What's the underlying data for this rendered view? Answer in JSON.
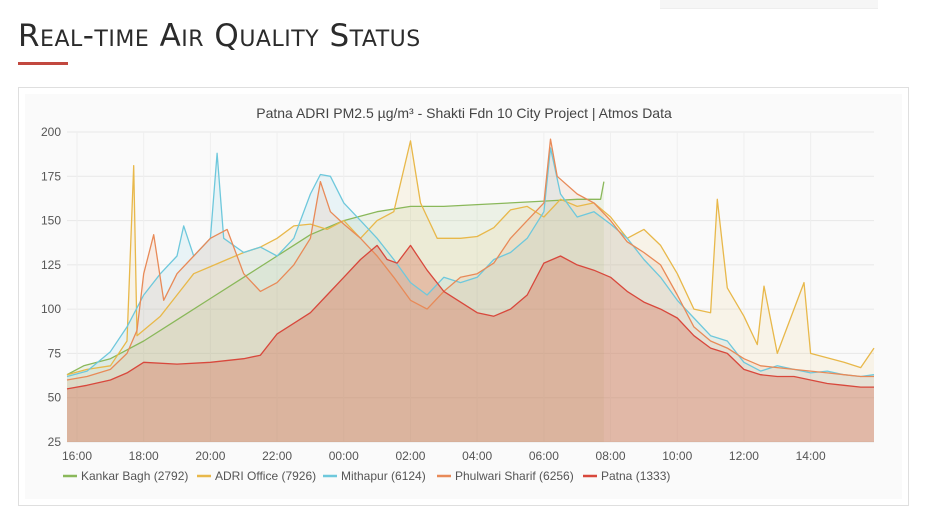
{
  "page": {
    "heading": "Real-time Air Quality Status"
  },
  "chart_data": {
    "type": "area",
    "title": "Patna ADRI PM2.5 µg/m³ - Shakti Fdn 10 City Project | Atmos Data",
    "xlabel": "",
    "ylabel": "",
    "ylim": [
      25,
      200
    ],
    "y_ticks": [
      25,
      50,
      75,
      100,
      125,
      150,
      175,
      200
    ],
    "xlim": [
      -0.3,
      23.9
    ],
    "x_ticks": [
      {
        "t": 0,
        "label": "16:00"
      },
      {
        "t": 2,
        "label": "18:00"
      },
      {
        "t": 4,
        "label": "20:00"
      },
      {
        "t": 6,
        "label": "22:00"
      },
      {
        "t": 8,
        "label": "00:00"
      },
      {
        "t": 10,
        "label": "02:00"
      },
      {
        "t": 12,
        "label": "04:00"
      },
      {
        "t": 14,
        "label": "06:00"
      },
      {
        "t": 16,
        "label": "08:00"
      },
      {
        "t": 18,
        "label": "10:00"
      },
      {
        "t": 20,
        "label": "12:00"
      },
      {
        "t": 22,
        "label": "14:00"
      }
    ],
    "grid": true,
    "legend_position": "bottom",
    "series": [
      {
        "name": "Kankar Bagh (2792)",
        "color": "#8ab85a",
        "fill": "rgba(138,184,90,0.12)",
        "points": [
          [
            -0.3,
            63
          ],
          [
            0.2,
            68
          ],
          [
            1,
            72
          ],
          [
            2,
            82
          ],
          [
            3,
            94
          ],
          [
            4,
            106
          ],
          [
            5,
            118
          ],
          [
            6,
            130
          ],
          [
            7,
            142
          ],
          [
            8,
            150
          ],
          [
            9,
            155
          ],
          [
            10,
            158
          ],
          [
            11,
            158
          ],
          [
            12,
            159
          ],
          [
            13,
            160
          ],
          [
            14,
            161
          ],
          [
            15,
            162
          ],
          [
            15.7,
            162
          ],
          [
            15.8,
            172
          ]
        ]
      },
      {
        "name": "ADRI Office (7926)",
        "color": "#e8b84a",
        "fill": "rgba(232,184,74,0.10)",
        "points": [
          [
            -0.3,
            63
          ],
          [
            0.3,
            66
          ],
          [
            1,
            68
          ],
          [
            1.5,
            82
          ],
          [
            1.7,
            181
          ],
          [
            1.8,
            85
          ],
          [
            2.5,
            96
          ],
          [
            3,
            108
          ],
          [
            3.5,
            120
          ],
          [
            4,
            124
          ],
          [
            4.5,
            128
          ],
          [
            5,
            132
          ],
          [
            5.5,
            135
          ],
          [
            6,
            140
          ],
          [
            6.5,
            147
          ],
          [
            7,
            148
          ],
          [
            7.5,
            145
          ],
          [
            8,
            150
          ],
          [
            8.5,
            140
          ],
          [
            9,
            150
          ],
          [
            9.5,
            155
          ],
          [
            10,
            195
          ],
          [
            10.3,
            160
          ],
          [
            10.8,
            140
          ],
          [
            11.5,
            140
          ],
          [
            12,
            141
          ],
          [
            12.5,
            146
          ],
          [
            13,
            156
          ],
          [
            13.5,
            158
          ],
          [
            14,
            152
          ],
          [
            14.5,
            162
          ],
          [
            15,
            158
          ],
          [
            15.5,
            160
          ],
          [
            16,
            152
          ],
          [
            16.5,
            140
          ],
          [
            17,
            145
          ],
          [
            17.5,
            136
          ],
          [
            18,
            120
          ],
          [
            18.5,
            100
          ],
          [
            19,
            98
          ],
          [
            19.2,
            162
          ],
          [
            19.5,
            112
          ],
          [
            20,
            96
          ],
          [
            20.4,
            80
          ],
          [
            20.6,
            113
          ],
          [
            21,
            75
          ],
          [
            21.8,
            115
          ],
          [
            22,
            75
          ],
          [
            23,
            70
          ],
          [
            23.5,
            67
          ],
          [
            23.9,
            78
          ]
        ]
      },
      {
        "name": "Mithapur (6124)",
        "color": "#6ec8dc",
        "fill": "rgba(110,200,220,0.12)",
        "points": [
          [
            -0.3,
            62
          ],
          [
            0.3,
            65
          ],
          [
            1,
            76
          ],
          [
            1.5,
            90
          ],
          [
            2,
            108
          ],
          [
            2.5,
            120
          ],
          [
            3,
            130
          ],
          [
            3.2,
            147
          ],
          [
            3.5,
            130
          ],
          [
            4,
            140
          ],
          [
            4.2,
            188
          ],
          [
            4.4,
            140
          ],
          [
            5,
            132
          ],
          [
            5.5,
            135
          ],
          [
            6,
            130
          ],
          [
            6.5,
            140
          ],
          [
            7,
            165
          ],
          [
            7.3,
            176
          ],
          [
            7.6,
            175
          ],
          [
            8,
            160
          ],
          [
            8.5,
            150
          ],
          [
            9,
            140
          ],
          [
            9.5,
            128
          ],
          [
            10,
            115
          ],
          [
            10.5,
            108
          ],
          [
            11,
            118
          ],
          [
            11.5,
            115
          ],
          [
            12,
            118
          ],
          [
            12.5,
            128
          ],
          [
            13,
            132
          ],
          [
            13.5,
            140
          ],
          [
            14,
            155
          ],
          [
            14.2,
            191
          ],
          [
            14.5,
            165
          ],
          [
            15,
            152
          ],
          [
            15.5,
            155
          ],
          [
            16,
            148
          ],
          [
            16.5,
            140
          ],
          [
            17,
            128
          ],
          [
            17.5,
            118
          ],
          [
            18,
            105
          ],
          [
            18.5,
            95
          ],
          [
            19,
            85
          ],
          [
            19.5,
            82
          ],
          [
            20,
            70
          ],
          [
            20.5,
            65
          ],
          [
            21,
            68
          ],
          [
            21.5,
            66
          ],
          [
            22,
            64
          ],
          [
            22.5,
            65
          ],
          [
            23,
            63
          ],
          [
            23.5,
            62
          ],
          [
            23.9,
            63
          ]
        ]
      },
      {
        "name": "Phulwari Sharif (6256)",
        "color": "#e88a58",
        "fill": "rgba(232,138,88,0.12)",
        "points": [
          [
            -0.3,
            60
          ],
          [
            0.3,
            62
          ],
          [
            1,
            66
          ],
          [
            1.5,
            75
          ],
          [
            1.8,
            88
          ],
          [
            2,
            120
          ],
          [
            2.3,
            142
          ],
          [
            2.6,
            105
          ],
          [
            3,
            120
          ],
          [
            3.5,
            130
          ],
          [
            4,
            140
          ],
          [
            4.5,
            145
          ],
          [
            5,
            120
          ],
          [
            5.5,
            110
          ],
          [
            6,
            115
          ],
          [
            6.5,
            125
          ],
          [
            7,
            140
          ],
          [
            7.3,
            172
          ],
          [
            7.6,
            155
          ],
          [
            8,
            148
          ],
          [
            8.5,
            140
          ],
          [
            9,
            130
          ],
          [
            9.5,
            118
          ],
          [
            10,
            105
          ],
          [
            10.5,
            100
          ],
          [
            11,
            110
          ],
          [
            11.5,
            118
          ],
          [
            12,
            120
          ],
          [
            12.5,
            126
          ],
          [
            13,
            140
          ],
          [
            13.5,
            150
          ],
          [
            14,
            160
          ],
          [
            14.2,
            196
          ],
          [
            14.4,
            175
          ],
          [
            15,
            165
          ],
          [
            15.5,
            160
          ],
          [
            16,
            150
          ],
          [
            16.5,
            138
          ],
          [
            17,
            132
          ],
          [
            17.5,
            125
          ],
          [
            18,
            108
          ],
          [
            18.5,
            90
          ],
          [
            19,
            82
          ],
          [
            19.5,
            78
          ],
          [
            20,
            72
          ],
          [
            20.5,
            68
          ],
          [
            21,
            67
          ],
          [
            21.5,
            66
          ],
          [
            22,
            65
          ],
          [
            22.5,
            64
          ],
          [
            23,
            63
          ],
          [
            23.5,
            62
          ],
          [
            23.9,
            62
          ]
        ]
      },
      {
        "name": "Patna (1333)",
        "color": "#d8483c",
        "fill": "rgba(216,100,70,0.32)",
        "points": [
          [
            -0.3,
            55
          ],
          [
            0.3,
            57
          ],
          [
            1,
            60
          ],
          [
            1.5,
            64
          ],
          [
            2,
            70
          ],
          [
            3,
            69
          ],
          [
            4,
            70
          ],
          [
            5,
            72
          ],
          [
            5.5,
            74
          ],
          [
            6,
            86
          ],
          [
            6.5,
            92
          ],
          [
            7,
            98
          ],
          [
            7.5,
            108
          ],
          [
            8,
            118
          ],
          [
            8.5,
            128
          ],
          [
            9,
            136
          ],
          [
            9.3,
            128
          ],
          [
            9.6,
            126
          ],
          [
            10,
            136
          ],
          [
            10.5,
            122
          ],
          [
            11,
            110
          ],
          [
            11.5,
            104
          ],
          [
            12,
            98
          ],
          [
            12.5,
            96
          ],
          [
            13,
            100
          ],
          [
            13.5,
            108
          ],
          [
            14,
            126
          ],
          [
            14.5,
            130
          ],
          [
            15,
            125
          ],
          [
            15.5,
            122
          ],
          [
            16,
            118
          ],
          [
            16.5,
            110
          ],
          [
            17,
            104
          ],
          [
            17.5,
            100
          ],
          [
            18,
            95
          ],
          [
            18.5,
            85
          ],
          [
            19,
            78
          ],
          [
            19.5,
            75
          ],
          [
            20,
            66
          ],
          [
            20.5,
            63
          ],
          [
            21,
            62
          ],
          [
            21.5,
            62
          ],
          [
            22,
            60
          ],
          [
            22.5,
            58
          ],
          [
            23,
            57
          ],
          [
            23.5,
            56
          ],
          [
            23.9,
            56
          ]
        ]
      }
    ]
  }
}
